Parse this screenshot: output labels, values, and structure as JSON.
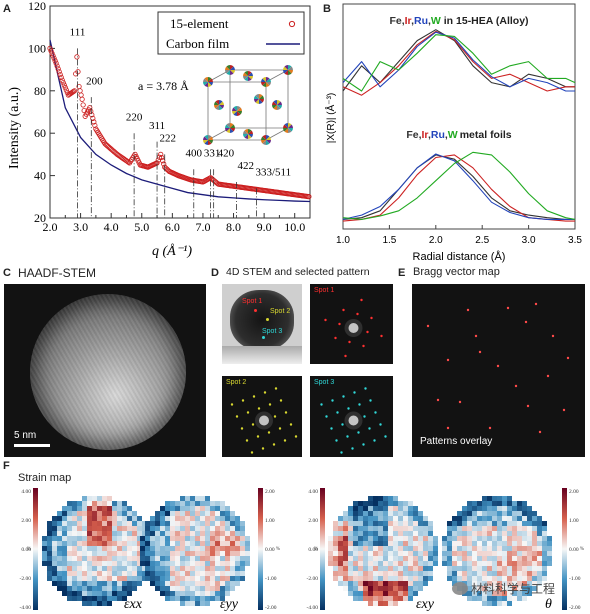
{
  "panelA": {
    "letter": "A",
    "ylabel": "Intensity (a.u.)",
    "xlabel": "q (Å⁻¹)",
    "legend": [
      {
        "label": "15-element",
        "color": "#cc1f1f",
        "marker": "circle"
      },
      {
        "label": "Carbon film",
        "color": "#1c1c7a",
        "marker": "line"
      }
    ],
    "lattice": "a = 3.78 Å",
    "peaks": [
      "111",
      "200",
      "220",
      "311",
      "222",
      "400",
      "331",
      "420",
      "422",
      "333/511"
    ]
  },
  "panelB": {
    "letter": "B",
    "ylabel": "|X(R)| (Å⁻³)",
    "xlabel": "Radial distance (Å)",
    "top_title": {
      "elements": [
        "Fe",
        "Ir",
        "Ru",
        "W"
      ],
      "suffix": " in 15-HEA (Alloy)",
      "separator": ","
    },
    "bottom_title": {
      "elements": [
        "Fe",
        "Ir",
        "Ru",
        "W"
      ],
      "suffix": "metal foils",
      "separator": ","
    },
    "colors": {
      "Fe": "#333333",
      "Ir": "#cc2222",
      "Ru": "#2244bb",
      "W": "#22aa22"
    }
  },
  "panelC": {
    "letter": "C",
    "title": "HAADF-STEM",
    "scalebar": "5 nm"
  },
  "panelD": {
    "letter": "D",
    "title": "4D STEM and selected pattern",
    "spots": [
      "Spot 1",
      "Spot 2",
      "Spot 3"
    ],
    "spot_colors": [
      "#ff3030",
      "#d8d830",
      "#30d8d8"
    ]
  },
  "panelE": {
    "letter": "E",
    "title": "Bragg vector map",
    "caption": "Patterns overlay"
  },
  "panelF": {
    "letter": "F",
    "title": "Strain map",
    "maps": [
      "εxx",
      "εyy",
      "εxy",
      "θ"
    ],
    "colorbar_ticks_left": [
      "4.00",
      "2.00",
      "0.00",
      "-2.00",
      "-4.00"
    ],
    "colorbar_ticks_mid": [
      "2.00",
      "1.00",
      "0.00",
      "-1.00",
      "-2.00"
    ],
    "unit": "%",
    "watermark": "材料科学与工程"
  },
  "chart_data": [
    {
      "type": "scatter",
      "title": "",
      "xlabel": "q (Å⁻¹)",
      "ylabel": "Intensity (a.u.)",
      "xlim": [
        2.0,
        10.5
      ],
      "ylim": [
        20,
        120
      ],
      "x_ticks": [
        2.0,
        2.5,
        3.0,
        3.5,
        4.0,
        4.5,
        5.0,
        5.5,
        6.0,
        6.5,
        7.0,
        7.5,
        8.0,
        8.5,
        9.0,
        9.5,
        10.0
      ],
      "y_ticks": [
        20,
        40,
        60,
        80,
        100,
        120
      ],
      "series": [
        {
          "name": "15-element",
          "x": [
            2.0,
            2.2,
            2.4,
            2.6,
            2.8,
            2.88,
            2.95,
            3.05,
            3.15,
            3.3,
            3.5,
            3.8,
            4.2,
            4.6,
            4.78,
            4.95,
            5.2,
            5.5,
            5.62,
            5.75,
            5.9,
            6.2,
            6.6,
            7.0,
            7.25,
            7.5,
            8.0,
            8.5,
            9.0,
            9.5,
            10.0,
            10.5
          ],
          "y": [
            100,
            93,
            85,
            78,
            80,
            96,
            82,
            76,
            68,
            72,
            62,
            55,
            50,
            46,
            50,
            45,
            44,
            46,
            50,
            44,
            42,
            40,
            38,
            37,
            39,
            36,
            35,
            34,
            33,
            32,
            31,
            30
          ]
        },
        {
          "name": "Carbon film",
          "x": [
            2.0,
            2.5,
            3.0,
            3.5,
            4.0,
            4.5,
            5.0,
            5.5,
            6.0,
            6.5,
            7.0,
            7.5,
            8.0,
            8.5,
            9.0,
            9.5,
            10.0,
            10.5
          ],
          "y": [
            104,
            72,
            58,
            50,
            45,
            41,
            38,
            36,
            34,
            32,
            31,
            30,
            29.5,
            29,
            28.6,
            28.3,
            28,
            27.8
          ]
        }
      ],
      "peak_positions": [
        2.9,
        3.35,
        4.75,
        5.5,
        5.75,
        6.7,
        7.25,
        7.35,
        8.1,
        8.75
      ]
    },
    {
      "type": "line",
      "title": "",
      "xlabel": "Radial distance (Å)",
      "ylabel": "|X(R)| (Å⁻³)",
      "xlim": [
        1.0,
        3.5
      ],
      "x_ticks": [
        1.0,
        1.5,
        2.0,
        2.5,
        3.0,
        3.5
      ],
      "panels": [
        {
          "name": "alloy",
          "x": [
            1.0,
            1.2,
            1.4,
            1.6,
            1.8,
            2.0,
            2.2,
            2.4,
            2.6,
            2.8,
            3.0,
            3.2,
            3.4,
            3.5
          ],
          "series": [
            {
              "name": "Fe",
              "values": [
                0.25,
                0.55,
                0.35,
                0.6,
                0.85,
                0.98,
                0.85,
                0.55,
                0.35,
                0.3,
                0.45,
                0.4,
                0.3,
                0.3
              ]
            },
            {
              "name": "Ir",
              "values": [
                0.3,
                0.2,
                0.35,
                0.55,
                0.8,
                0.96,
                0.86,
                0.6,
                0.4,
                0.45,
                0.35,
                0.25,
                0.3,
                0.3
              ]
            },
            {
              "name": "Ru",
              "values": [
                0.35,
                0.6,
                0.3,
                0.5,
                0.78,
                0.95,
                0.88,
                0.62,
                0.42,
                0.3,
                0.4,
                0.35,
                0.25,
                0.25
              ]
            },
            {
              "name": "W",
              "values": [
                0.4,
                0.25,
                0.6,
                0.5,
                0.7,
                0.92,
                0.9,
                0.7,
                0.45,
                0.55,
                0.6,
                0.4,
                0.4,
                0.35
              ]
            }
          ]
        },
        {
          "name": "foils",
          "x": [
            1.0,
            1.2,
            1.4,
            1.6,
            1.8,
            2.0,
            2.2,
            2.4,
            2.6,
            2.8,
            3.0,
            3.2,
            3.4,
            3.5
          ],
          "series": [
            {
              "name": "Fe",
              "values": [
                0.1,
                0.12,
                0.2,
                0.45,
                0.7,
                0.85,
                0.8,
                0.6,
                0.35,
                0.2,
                0.15,
                0.12,
                0.1,
                0.1
              ]
            },
            {
              "name": "Ir",
              "values": [
                0.08,
                0.1,
                0.15,
                0.35,
                0.62,
                0.82,
                0.85,
                0.7,
                0.45,
                0.25,
                0.12,
                0.1,
                0.08,
                0.08
              ]
            },
            {
              "name": "Ru",
              "values": [
                0.1,
                0.15,
                0.25,
                0.45,
                0.7,
                0.86,
                0.78,
                0.55,
                0.3,
                0.18,
                0.12,
                0.1,
                0.1,
                0.1
              ]
            },
            {
              "name": "W",
              "values": [
                0.12,
                0.1,
                0.14,
                0.2,
                0.35,
                0.55,
                0.75,
                0.88,
                0.85,
                0.65,
                0.4,
                0.2,
                0.12,
                0.1
              ]
            }
          ]
        }
      ]
    }
  ]
}
